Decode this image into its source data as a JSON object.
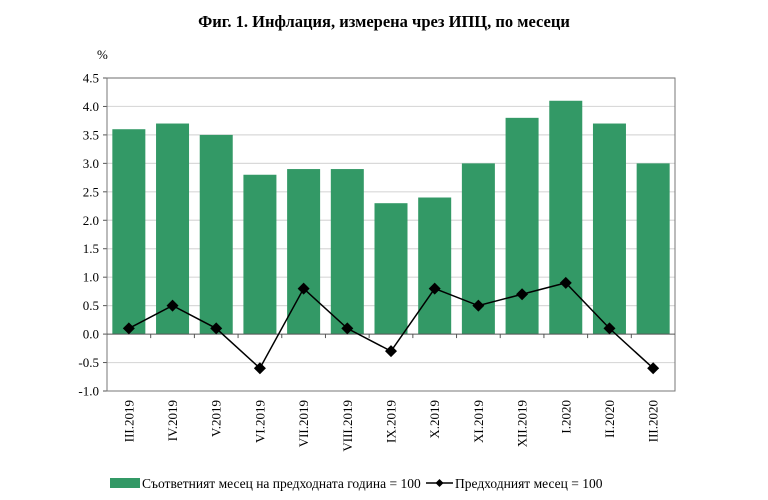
{
  "chart_data": {
    "type": "bar",
    "title": "Фиг. 1. Инфлация, измерена чрез ИПЦ, по месеци",
    "ylabel": "%",
    "xlabel": "",
    "ylim": [
      -1.0,
      4.5
    ],
    "yticks": [
      "4.5",
      "4.0",
      "3.5",
      "3.0",
      "2.5",
      "2.0",
      "1.5",
      "1.0",
      "0.5",
      "0.0",
      "-0.5",
      "-1.0"
    ],
    "grid": true,
    "legend_position": "bottom",
    "colors": {
      "bars": "#339966",
      "line": "#000000",
      "grid": "#d9d9d9"
    },
    "categories": [
      "III.2019",
      "IV.2019",
      "V.2019",
      "VI.2019",
      "VII.2019",
      "VIII.2019",
      "IX.2019",
      "X.2019",
      "XI.2019",
      "XII.2019",
      "I.2020",
      "II.2020",
      "III.2020"
    ],
    "series": [
      {
        "name": "Съответният месец на предходната година = 100",
        "type": "bar",
        "values": [
          3.6,
          3.7,
          3.5,
          2.8,
          2.9,
          2.9,
          2.3,
          2.4,
          3.0,
          3.8,
          4.1,
          3.7,
          3.0
        ]
      },
      {
        "name": "Предходният месец = 100",
        "type": "line",
        "marker": "diamond",
        "values": [
          0.1,
          0.5,
          0.1,
          -0.6,
          0.8,
          0.1,
          -0.3,
          0.8,
          0.5,
          0.7,
          0.9,
          0.1,
          -0.6
        ]
      }
    ]
  }
}
